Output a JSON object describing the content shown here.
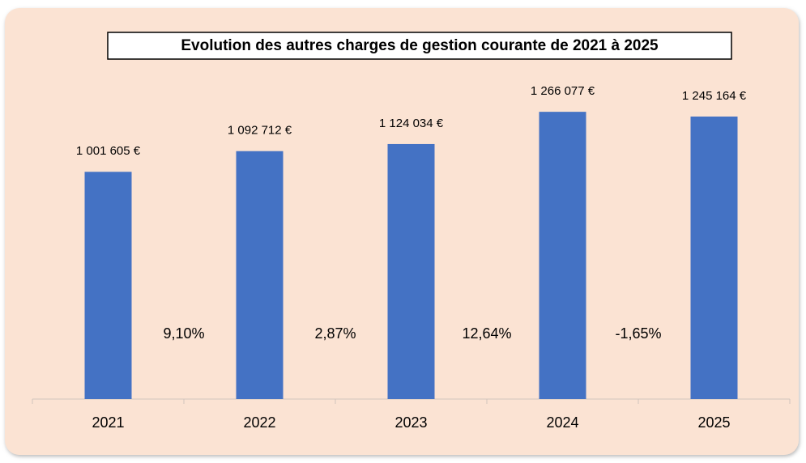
{
  "chart_data": {
    "type": "bar",
    "title": "Evolution des autres charges de gestion courante de 2021 à 2025",
    "categories": [
      "2021",
      "2022",
      "2023",
      "2024",
      "2025"
    ],
    "values": [
      1001605,
      1092712,
      1124034,
      1266077,
      1245164
    ],
    "value_labels": [
      "1 001 605 €",
      "1 092 712 €",
      "1 124 034 €",
      "1 266 077 €",
      "1 245 164 €"
    ],
    "growth_labels": [
      "9,10%",
      "2,87%",
      "12,64%",
      "-1,65%"
    ],
    "color": "#4472c4",
    "ylim": [
      0,
      1400000
    ]
  }
}
